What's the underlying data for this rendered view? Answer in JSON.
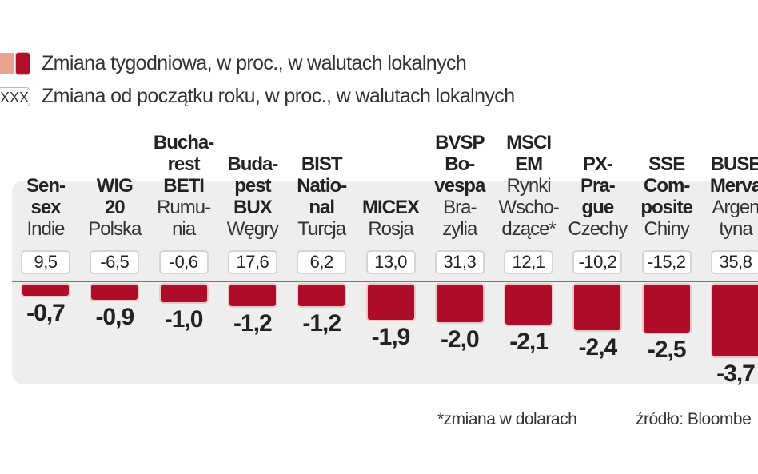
{
  "legend": {
    "weekly_label": "Zmiana tygodniowa, w proc., w walutach lokalnych",
    "ytd_swatch": "XXX",
    "ytd_label": "Zmiana od początku roku, w proc., w walutach lokalnych"
  },
  "colors": {
    "bar": "#ad0d29",
    "bar_light": "#e8a48f",
    "panel": "#eeeeee"
  },
  "chart_data": {
    "type": "bar",
    "categories": [
      {
        "index": [
          "Sen-",
          "sex"
        ],
        "country": [
          "Indie"
        ]
      },
      {
        "index": [
          "WIG",
          "20"
        ],
        "country": [
          "Polska"
        ]
      },
      {
        "index": [
          "Bucha-",
          "rest",
          "BETI"
        ],
        "country": [
          "Rumu-",
          "nia"
        ]
      },
      {
        "index": [
          "Buda-",
          "pest",
          "BUX"
        ],
        "country": [
          "Węgry"
        ]
      },
      {
        "index": [
          "BIST",
          "Natio-",
          "nal"
        ],
        "country": [
          "Turcja"
        ]
      },
      {
        "index": [
          "MICEX"
        ],
        "country": [
          "Rosja"
        ]
      },
      {
        "index": [
          "BVSP",
          "Bo-",
          "vespa"
        ],
        "country": [
          "Bra-",
          "zylia"
        ]
      },
      {
        "index": [
          "MSCI",
          "EM"
        ],
        "country": [
          "Rynki",
          "Wscho-",
          "dzące*"
        ]
      },
      {
        "index": [
          "PX-",
          "Pra-",
          "gue"
        ],
        "country": [
          "Czechy"
        ]
      },
      {
        "index": [
          "SSE",
          "Com-",
          "posite"
        ],
        "country": [
          "Chiny"
        ]
      },
      {
        "index": [
          "BUSE",
          "Merva"
        ],
        "country": [
          "Argen",
          "tyna"
        ]
      }
    ],
    "series": [
      {
        "name": "Zmiana tygodniowa, w proc., w walutach lokalnych",
        "values": [
          -0.7,
          -0.9,
          -1.0,
          -1.2,
          -1.2,
          -1.9,
          -2.0,
          -2.1,
          -2.4,
          -2.5,
          -3.7
        ],
        "labels": [
          "-0,7",
          "-0,9",
          "-1,0",
          "-1,2",
          "-1,2",
          "-1,9",
          "-2,0",
          "-2,1",
          "-2,4",
          "-2,5",
          "-3,7"
        ]
      },
      {
        "name": "Zmiana od początku roku, w proc., w walutach lokalnych",
        "values": [
          9.5,
          -6.5,
          -0.6,
          17.6,
          6.2,
          13.0,
          31.3,
          12.1,
          -10.2,
          -15.2,
          35.8
        ],
        "labels": [
          "9,5",
          "-6,5",
          "-0,6",
          "17,6",
          "6,2",
          "13,0",
          "31,3",
          "12,1",
          "-10,2",
          "-15,2",
          "35,8"
        ]
      }
    ]
  },
  "footnote": "*zmiana w dolarach",
  "source": "źródło: Bloombe"
}
